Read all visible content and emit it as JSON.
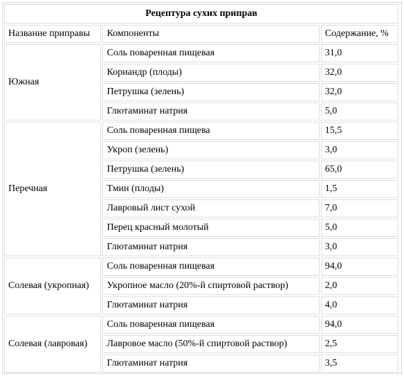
{
  "title": "Рецептура сухих приправ",
  "columns": [
    "Название приправы",
    "Компоненты",
    "Содержание, %"
  ],
  "groups": [
    {
      "name": "Южная",
      "rows": [
        {
          "component": "Соль поваренная пищевая",
          "content": "31,0"
        },
        {
          "component": "Кориандр (плоды)",
          "content": "32,0"
        },
        {
          "component": "Петрушка (зелень)",
          "content": "32,0"
        },
        {
          "component": "Глютаминат натрия",
          "content": "5,0"
        }
      ]
    },
    {
      "name": "Перечная",
      "rows": [
        {
          "component": "Соль поваренная пищева",
          "content": "15,5"
        },
        {
          "component": "Укроп (зелень)",
          "content": "3,0"
        },
        {
          "component": "Петрушка (зелень)",
          "content": "65,0"
        },
        {
          "component": "Тмин (плоды)",
          "content": "1,5"
        },
        {
          "component": "Лавровый лист сухой",
          "content": "7,0"
        },
        {
          "component": "Перец красный молотый",
          "content": "5,0"
        },
        {
          "component": "Глютаминат натрия",
          "content": "3,0"
        }
      ]
    },
    {
      "name": "Солевая (укропная)",
      "rows": [
        {
          "component": "Соль поваренная пищевая",
          "content": "94,0"
        },
        {
          "component": "Укропное масло (20%-й спиртовой раствор)",
          "content": "2,0"
        },
        {
          "component": "Глютаминат натрия",
          "content": "4,0"
        }
      ]
    },
    {
      "name": "Солевая (лавровая)",
      "rows": [
        {
          "component": "Соль поваренная пищевая",
          "content": "94,0"
        },
        {
          "component": "Лавровое масло (50%-й спиртовой раствор)",
          "content": "2,5"
        },
        {
          "component": "Глютаминат натрия",
          "content": "3,5"
        }
      ]
    }
  ]
}
